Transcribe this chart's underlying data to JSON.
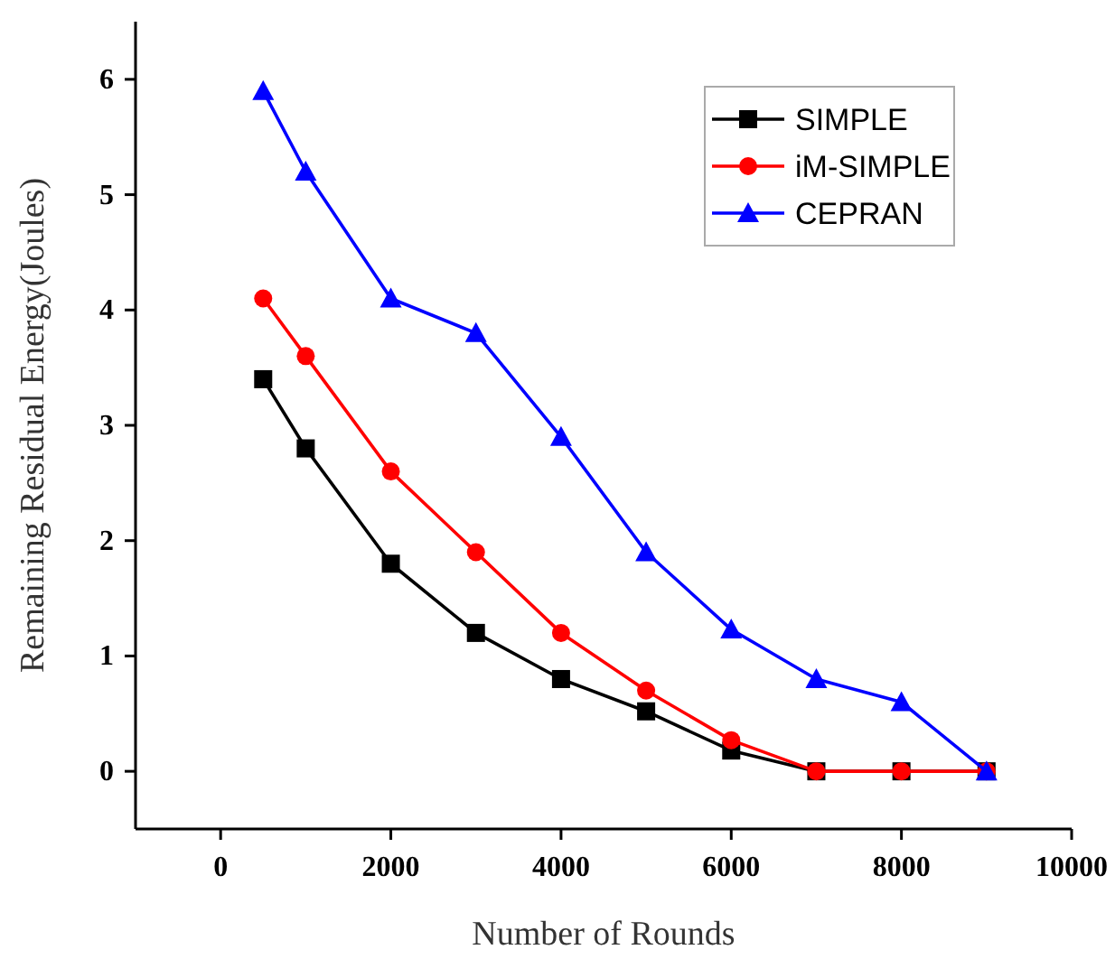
{
  "chart_data": {
    "type": "line",
    "xlabel": "Number of Rounds",
    "ylabel": "Remaining Residual Energy(Joules)",
    "x": [
      500,
      1000,
      2000,
      3000,
      4000,
      5000,
      6000,
      7000,
      8000,
      9000
    ],
    "xlim": [
      -1000,
      10000
    ],
    "xticks": [
      0,
      2000,
      4000,
      6000,
      8000,
      10000
    ],
    "ylim": [
      -0.5,
      6.5
    ],
    "yticks": [
      0,
      1,
      2,
      3,
      4,
      5,
      6
    ],
    "legend": "top right",
    "grid": false,
    "series": [
      {
        "name": "SIMPLE",
        "color": "#000000",
        "marker": "square",
        "values": [
          3.4,
          2.8,
          1.8,
          1.2,
          0.8,
          0.52,
          0.18,
          0,
          0,
          0
        ]
      },
      {
        "name": "iM-SIMPLE",
        "color": "#ff0000",
        "marker": "circle",
        "values": [
          4.1,
          3.6,
          2.6,
          1.9,
          1.2,
          0.7,
          0.27,
          0,
          0,
          0
        ]
      },
      {
        "name": "CEPRAN",
        "color": "#0000ff",
        "marker": "triangle",
        "values": [
          5.9,
          5.2,
          4.1,
          3.8,
          2.9,
          1.9,
          1.23,
          0.8,
          0.6,
          0
        ]
      }
    ]
  }
}
